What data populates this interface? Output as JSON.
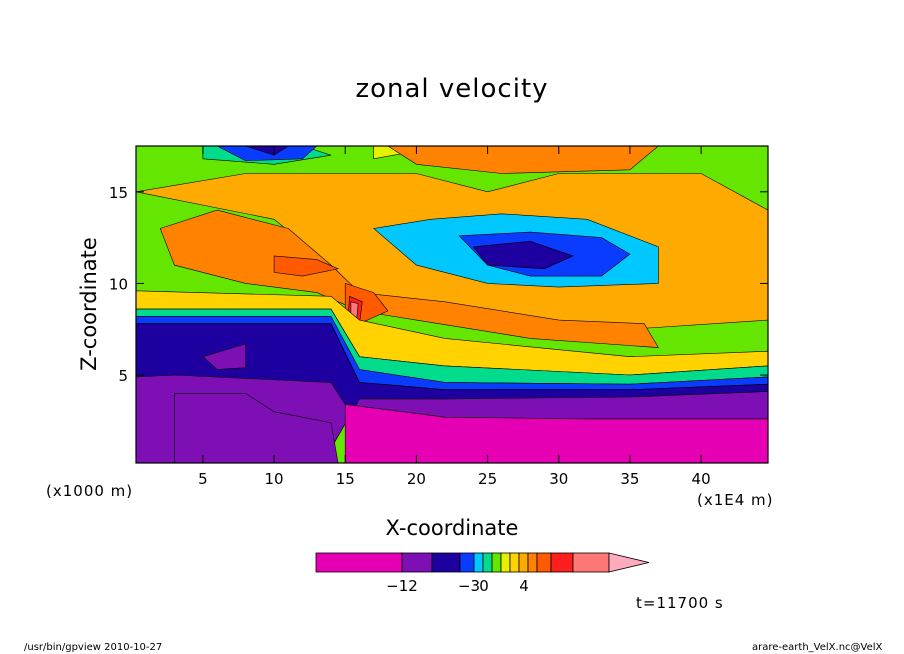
{
  "title": "zonal velocity",
  "chart_data": {
    "type": "heatmap",
    "title": "zonal velocity",
    "xlabel": "X-coordinate",
    "ylabel": "Z-coordinate",
    "x_unit_left": "(x1000 m)",
    "x_unit_right": "(x1E4 m)",
    "xlim": [
      0.3,
      44.7
    ],
    "ylim": [
      0.2,
      17.5
    ],
    "x_ticks": [
      5,
      10,
      15,
      20,
      25,
      30,
      35,
      40
    ],
    "y_ticks": [
      5,
      10,
      15
    ],
    "colorbar": {
      "labels": [
        {
          "value": -12,
          "text": "−12"
        },
        {
          "value": -3,
          "text": "−3"
        },
        {
          "value": 0,
          "text": "0"
        },
        {
          "value": 4,
          "text": "4"
        }
      ],
      "colors": [
        "#e600b4",
        "#7d0fb4",
        "#1e00a0",
        "#0a3cff",
        "#00c8ff",
        "#00dc8c",
        "#64e600",
        "#e6f000",
        "#ffd200",
        "#ffaa00",
        "#ff8200",
        "#ff5a00",
        "#ff1e1e",
        "#ff7878",
        "#ffaabe"
      ]
    },
    "grid": false,
    "legend": "colorbar below plot"
  },
  "annotations": {
    "time": "t=11700 s",
    "footer_left": "/usr/bin/gpview  2010-10-27",
    "footer_right": "arare-earth_VelX.nc@VelX"
  }
}
